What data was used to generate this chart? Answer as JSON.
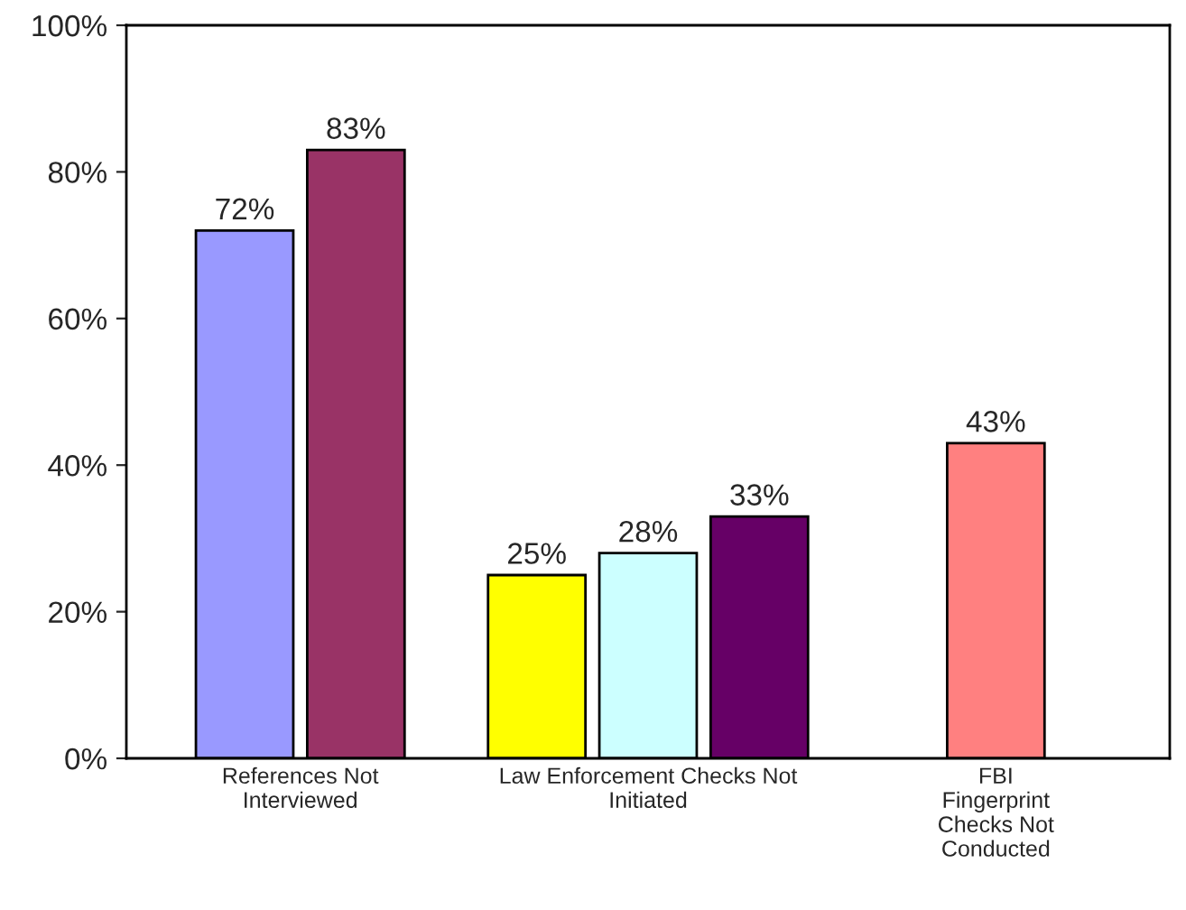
{
  "chart_data": {
    "type": "bar",
    "categories": [
      "References Not\nInterviewed",
      "Law Enforcement Checks Not\nInitiated",
      "FBI\nFingerprint\nChecks Not\nConducted"
    ],
    "series": [
      {
        "values": [
          72,
          25,
          43
        ],
        "colors": [
          "#9999ff",
          "#ffff00",
          "#ff8080"
        ]
      },
      {
        "values": [
          83,
          28,
          null
        ],
        "colors": [
          "#993366",
          "#ccffff",
          null
        ]
      },
      {
        "values": [
          null,
          33,
          null
        ],
        "colors": [
          null,
          "#660066",
          null
        ]
      }
    ],
    "ylim": [
      0,
      100
    ],
    "yticks": [
      {
        "value": 0,
        "label": "0%"
      },
      {
        "value": 20,
        "label": "20%"
      },
      {
        "value": 40,
        "label": "40%"
      },
      {
        "value": 60,
        "label": "60%"
      },
      {
        "value": 80,
        "label": "80%"
      },
      {
        "value": 100,
        "label": "100%"
      }
    ],
    "value_labels": [
      [
        "72%",
        "25%",
        "43%"
      ],
      [
        "83%",
        "28%",
        null
      ],
      [
        null,
        "33%",
        null
      ]
    ],
    "grid": false,
    "legend": false
  }
}
